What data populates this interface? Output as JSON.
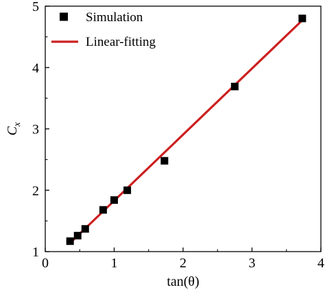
{
  "chart_data": {
    "type": "scatter",
    "title": "",
    "xlabel": "tan(θ)",
    "ylabel": "C",
    "ylabel_subscript": "x",
    "xlim": [
      0,
      4
    ],
    "ylim": [
      1,
      5
    ],
    "xticks": [
      "0",
      "1",
      "2",
      "3",
      "4"
    ],
    "yticks": [
      "1",
      "2",
      "3",
      "4",
      "5"
    ],
    "grid": false,
    "legend_position": "top-left",
    "series": [
      {
        "name": "Simulation",
        "kind": "scatter",
        "marker": "square",
        "color": "#000000",
        "x": [
          0.36,
          0.47,
          0.58,
          0.84,
          1.0,
          1.19,
          1.73,
          2.75,
          3.73
        ],
        "y": [
          1.17,
          1.26,
          1.37,
          1.68,
          1.84,
          2.0,
          2.48,
          3.69,
          4.8
        ]
      },
      {
        "name": "Linear-fitting",
        "kind": "line",
        "color": "#cc1f1f",
        "x": [
          0.36,
          3.73
        ],
        "y": [
          1.14,
          4.77
        ]
      }
    ]
  }
}
